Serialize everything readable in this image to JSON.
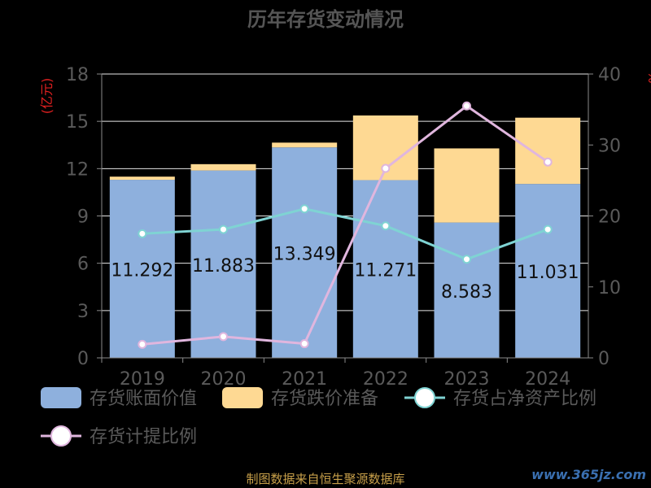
{
  "chart_data": {
    "type": "bar",
    "title": "历年存货变动情况",
    "categories": [
      "2019",
      "2020",
      "2021",
      "2022",
      "2023",
      "2024"
    ],
    "y_left": {
      "label": "(亿元)",
      "min": 0,
      "max": 18,
      "ticks": [
        0,
        3,
        6,
        9,
        12,
        15,
        18
      ]
    },
    "y_right": {
      "label": "%",
      "min": 0,
      "max": 40,
      "ticks": [
        0,
        10,
        20,
        30,
        40
      ]
    },
    "bar_series": [
      {
        "name": "存货账面价值",
        "color": "#8eb0dd",
        "values": [
          11.292,
          11.883,
          13.349,
          11.271,
          8.583,
          11.031
        ],
        "labels": [
          "11.292",
          "11.883",
          "13.349",
          "11.271",
          "8.583",
          "11.031"
        ]
      },
      {
        "name": "存货跌价准备",
        "color": "#fed993",
        "values": [
          0.2,
          0.4,
          0.3,
          4.1,
          4.7,
          4.2
        ]
      }
    ],
    "line_series": [
      {
        "name": "存货占净资产比例",
        "color": "#7fd3d3",
        "values": [
          17.5,
          18.1,
          21.0,
          18.6,
          13.9,
          18.1
        ]
      },
      {
        "name": "存货计提比例",
        "color": "#e0b6de",
        "values": [
          1.9,
          3.0,
          2.0,
          26.7,
          35.5,
          27.6
        ]
      }
    ],
    "grid": true,
    "legend_position": "bottom"
  },
  "footer": {
    "source": "制图数据来自恒生聚源数据库",
    "watermark": "www.365jz.com"
  }
}
